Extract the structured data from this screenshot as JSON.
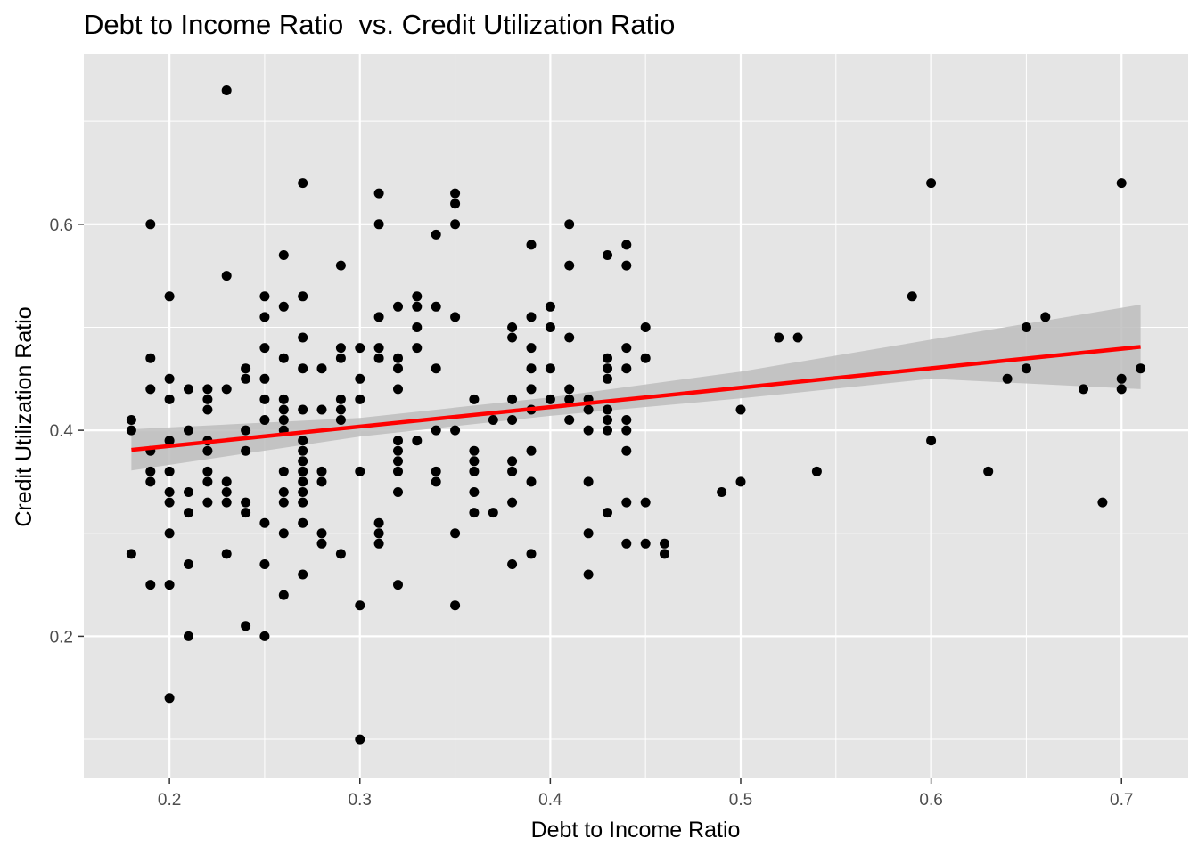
{
  "chart_data": {
    "type": "scatter",
    "title": "Debt to Income Ratio  vs. Credit Utilization Ratio",
    "xlabel": "Debt to Income Ratio",
    "ylabel": "Credit Utilization Ratio",
    "xlim": [
      0.155,
      0.735
    ],
    "ylim": [
      0.062,
      0.765
    ],
    "x_ticks": [
      0.2,
      0.3,
      0.4,
      0.5,
      0.6,
      0.7
    ],
    "x_tick_labels": [
      "0.2",
      "0.3",
      "0.4",
      "0.5",
      "0.6",
      "0.7"
    ],
    "y_ticks": [
      0.2,
      0.4,
      0.6
    ],
    "y_tick_labels": [
      "0.2",
      "0.4",
      "0.6"
    ],
    "grid": true,
    "colors": {
      "panel": "#e5e5e5",
      "grid": "#ffffff",
      "points": "#000000",
      "fit_line": "#ff0000",
      "ribbon": "#bdbdbd"
    },
    "points": [
      [
        0.18,
        0.41
      ],
      [
        0.18,
        0.4
      ],
      [
        0.18,
        0.28
      ],
      [
        0.19,
        0.6
      ],
      [
        0.19,
        0.47
      ],
      [
        0.19,
        0.44
      ],
      [
        0.19,
        0.38
      ],
      [
        0.19,
        0.36
      ],
      [
        0.19,
        0.35
      ],
      [
        0.19,
        0.25
      ],
      [
        0.2,
        0.53
      ],
      [
        0.2,
        0.45
      ],
      [
        0.2,
        0.43
      ],
      [
        0.2,
        0.39
      ],
      [
        0.2,
        0.36
      ],
      [
        0.2,
        0.34
      ],
      [
        0.2,
        0.33
      ],
      [
        0.2,
        0.3
      ],
      [
        0.2,
        0.25
      ],
      [
        0.2,
        0.14
      ],
      [
        0.21,
        0.44
      ],
      [
        0.21,
        0.4
      ],
      [
        0.21,
        0.34
      ],
      [
        0.21,
        0.32
      ],
      [
        0.21,
        0.27
      ],
      [
        0.21,
        0.2
      ],
      [
        0.22,
        0.44
      ],
      [
        0.22,
        0.43
      ],
      [
        0.22,
        0.42
      ],
      [
        0.22,
        0.39
      ],
      [
        0.22,
        0.38
      ],
      [
        0.22,
        0.36
      ],
      [
        0.22,
        0.35
      ],
      [
        0.22,
        0.33
      ],
      [
        0.23,
        0.73
      ],
      [
        0.23,
        0.55
      ],
      [
        0.23,
        0.44
      ],
      [
        0.23,
        0.35
      ],
      [
        0.23,
        0.34
      ],
      [
        0.23,
        0.33
      ],
      [
        0.23,
        0.28
      ],
      [
        0.24,
        0.46
      ],
      [
        0.24,
        0.45
      ],
      [
        0.24,
        0.4
      ],
      [
        0.24,
        0.38
      ],
      [
        0.24,
        0.33
      ],
      [
        0.24,
        0.32
      ],
      [
        0.24,
        0.21
      ],
      [
        0.25,
        0.53
      ],
      [
        0.25,
        0.51
      ],
      [
        0.25,
        0.48
      ],
      [
        0.25,
        0.45
      ],
      [
        0.25,
        0.43
      ],
      [
        0.25,
        0.41
      ],
      [
        0.25,
        0.31
      ],
      [
        0.25,
        0.27
      ],
      [
        0.25,
        0.2
      ],
      [
        0.26,
        0.57
      ],
      [
        0.26,
        0.52
      ],
      [
        0.26,
        0.47
      ],
      [
        0.26,
        0.43
      ],
      [
        0.26,
        0.42
      ],
      [
        0.26,
        0.41
      ],
      [
        0.26,
        0.4
      ],
      [
        0.26,
        0.36
      ],
      [
        0.26,
        0.34
      ],
      [
        0.26,
        0.33
      ],
      [
        0.26,
        0.3
      ],
      [
        0.26,
        0.24
      ],
      [
        0.27,
        0.64
      ],
      [
        0.27,
        0.53
      ],
      [
        0.27,
        0.49
      ],
      [
        0.27,
        0.46
      ],
      [
        0.27,
        0.42
      ],
      [
        0.27,
        0.39
      ],
      [
        0.27,
        0.38
      ],
      [
        0.27,
        0.37
      ],
      [
        0.27,
        0.36
      ],
      [
        0.27,
        0.35
      ],
      [
        0.27,
        0.34
      ],
      [
        0.27,
        0.33
      ],
      [
        0.27,
        0.31
      ],
      [
        0.27,
        0.26
      ],
      [
        0.28,
        0.46
      ],
      [
        0.28,
        0.42
      ],
      [
        0.28,
        0.36
      ],
      [
        0.28,
        0.35
      ],
      [
        0.28,
        0.3
      ],
      [
        0.28,
        0.29
      ],
      [
        0.29,
        0.56
      ],
      [
        0.29,
        0.48
      ],
      [
        0.29,
        0.47
      ],
      [
        0.29,
        0.43
      ],
      [
        0.29,
        0.42
      ],
      [
        0.29,
        0.41
      ],
      [
        0.29,
        0.28
      ],
      [
        0.3,
        0.48
      ],
      [
        0.3,
        0.45
      ],
      [
        0.3,
        0.43
      ],
      [
        0.3,
        0.36
      ],
      [
        0.3,
        0.23
      ],
      [
        0.3,
        0.1
      ],
      [
        0.31,
        0.63
      ],
      [
        0.31,
        0.6
      ],
      [
        0.31,
        0.51
      ],
      [
        0.31,
        0.48
      ],
      [
        0.31,
        0.47
      ],
      [
        0.31,
        0.31
      ],
      [
        0.31,
        0.3
      ],
      [
        0.31,
        0.29
      ],
      [
        0.32,
        0.52
      ],
      [
        0.32,
        0.47
      ],
      [
        0.32,
        0.46
      ],
      [
        0.32,
        0.44
      ],
      [
        0.32,
        0.39
      ],
      [
        0.32,
        0.38
      ],
      [
        0.32,
        0.37
      ],
      [
        0.32,
        0.36
      ],
      [
        0.32,
        0.34
      ],
      [
        0.32,
        0.25
      ],
      [
        0.33,
        0.53
      ],
      [
        0.33,
        0.52
      ],
      [
        0.33,
        0.5
      ],
      [
        0.33,
        0.48
      ],
      [
        0.33,
        0.39
      ],
      [
        0.34,
        0.59
      ],
      [
        0.34,
        0.52
      ],
      [
        0.34,
        0.46
      ],
      [
        0.34,
        0.4
      ],
      [
        0.34,
        0.36
      ],
      [
        0.34,
        0.35
      ],
      [
        0.35,
        0.63
      ],
      [
        0.35,
        0.62
      ],
      [
        0.35,
        0.6
      ],
      [
        0.35,
        0.51
      ],
      [
        0.35,
        0.4
      ],
      [
        0.35,
        0.3
      ],
      [
        0.35,
        0.23
      ],
      [
        0.36,
        0.43
      ],
      [
        0.36,
        0.38
      ],
      [
        0.36,
        0.37
      ],
      [
        0.36,
        0.36
      ],
      [
        0.36,
        0.34
      ],
      [
        0.36,
        0.32
      ],
      [
        0.37,
        0.41
      ],
      [
        0.37,
        0.32
      ],
      [
        0.38,
        0.5
      ],
      [
        0.38,
        0.49
      ],
      [
        0.38,
        0.43
      ],
      [
        0.38,
        0.41
      ],
      [
        0.38,
        0.37
      ],
      [
        0.38,
        0.36
      ],
      [
        0.38,
        0.33
      ],
      [
        0.38,
        0.27
      ],
      [
        0.39,
        0.58
      ],
      [
        0.39,
        0.51
      ],
      [
        0.39,
        0.48
      ],
      [
        0.39,
        0.46
      ],
      [
        0.39,
        0.44
      ],
      [
        0.39,
        0.42
      ],
      [
        0.39,
        0.38
      ],
      [
        0.39,
        0.35
      ],
      [
        0.39,
        0.28
      ],
      [
        0.4,
        0.52
      ],
      [
        0.4,
        0.5
      ],
      [
        0.4,
        0.46
      ],
      [
        0.4,
        0.43
      ],
      [
        0.41,
        0.6
      ],
      [
        0.41,
        0.56
      ],
      [
        0.41,
        0.49
      ],
      [
        0.41,
        0.44
      ],
      [
        0.41,
        0.43
      ],
      [
        0.41,
        0.41
      ],
      [
        0.42,
        0.43
      ],
      [
        0.42,
        0.42
      ],
      [
        0.42,
        0.4
      ],
      [
        0.42,
        0.35
      ],
      [
        0.42,
        0.3
      ],
      [
        0.42,
        0.26
      ],
      [
        0.43,
        0.57
      ],
      [
        0.43,
        0.47
      ],
      [
        0.43,
        0.46
      ],
      [
        0.43,
        0.45
      ],
      [
        0.43,
        0.42
      ],
      [
        0.43,
        0.41
      ],
      [
        0.43,
        0.4
      ],
      [
        0.43,
        0.32
      ],
      [
        0.44,
        0.58
      ],
      [
        0.44,
        0.56
      ],
      [
        0.44,
        0.48
      ],
      [
        0.44,
        0.46
      ],
      [
        0.44,
        0.41
      ],
      [
        0.44,
        0.4
      ],
      [
        0.44,
        0.38
      ],
      [
        0.44,
        0.33
      ],
      [
        0.44,
        0.29
      ],
      [
        0.45,
        0.5
      ],
      [
        0.45,
        0.47
      ],
      [
        0.45,
        0.33
      ],
      [
        0.45,
        0.29
      ],
      [
        0.46,
        0.29
      ],
      [
        0.46,
        0.28
      ],
      [
        0.49,
        0.34
      ],
      [
        0.5,
        0.42
      ],
      [
        0.5,
        0.35
      ],
      [
        0.52,
        0.49
      ],
      [
        0.53,
        0.49
      ],
      [
        0.54,
        0.36
      ],
      [
        0.59,
        0.53
      ],
      [
        0.6,
        0.64
      ],
      [
        0.6,
        0.39
      ],
      [
        0.63,
        0.36
      ],
      [
        0.64,
        0.45
      ],
      [
        0.65,
        0.5
      ],
      [
        0.65,
        0.46
      ],
      [
        0.66,
        0.51
      ],
      [
        0.68,
        0.44
      ],
      [
        0.69,
        0.33
      ],
      [
        0.7,
        0.64
      ],
      [
        0.7,
        0.45
      ],
      [
        0.7,
        0.44
      ],
      [
        0.71,
        0.46
      ]
    ],
    "fit_line": {
      "x": [
        0.18,
        0.71
      ],
      "y": [
        0.381,
        0.481
      ]
    },
    "confidence_band": {
      "x": [
        0.18,
        0.3,
        0.4,
        0.5,
        0.6,
        0.71
      ],
      "upper": [
        0.401,
        0.412,
        0.432,
        0.457,
        0.488,
        0.522
      ],
      "lower": [
        0.361,
        0.394,
        0.414,
        0.431,
        0.45,
        0.44
      ]
    }
  }
}
